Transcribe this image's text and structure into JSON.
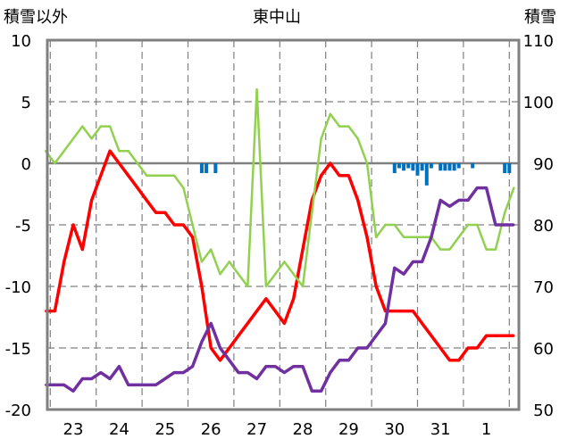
{
  "chart_data": {
    "type": "line",
    "title": "東中山",
    "left_axis_label": "積雪以外",
    "right_axis_label": "積雪",
    "left_ylim": [
      -20,
      10
    ],
    "left_ticks": [
      "10",
      "5",
      "0",
      "-5",
      "-10",
      "-15",
      "-20"
    ],
    "right_ylim": [
      50,
      110
    ],
    "right_ticks": [
      "110",
      "100",
      "90",
      "80",
      "70",
      "60",
      "50"
    ],
    "x_categories": [
      "23",
      "24",
      "25",
      "26",
      "27",
      "28",
      "29",
      "30",
      "31",
      "1"
    ],
    "grid": true,
    "colors": {
      "temperature": "#ff0000",
      "temp_alt": "#92d050",
      "snow_depth": "#7030a0",
      "precip": "#0070c0",
      "frame": "#808080",
      "grid": "#808080"
    },
    "series": [
      {
        "color_key": "temperature",
        "axis": "left",
        "x": [
          -0.6,
          -0.4,
          -0.2,
          0.0,
          0.2,
          0.4,
          0.6,
          0.8,
          1.0,
          1.2,
          1.4,
          1.6,
          1.8,
          2.0,
          2.2,
          2.4,
          2.6,
          2.8,
          3.0,
          3.2,
          3.4,
          3.6,
          3.8,
          4.0,
          4.2,
          4.4,
          4.6,
          4.8,
          5.0,
          5.2,
          5.4,
          5.6,
          5.8,
          6.0,
          6.2,
          6.4,
          6.6,
          6.8,
          7.0,
          7.2,
          7.4,
          7.6,
          7.8,
          8.0,
          8.2,
          8.4,
          8.6,
          8.8,
          9.0,
          9.2,
          9.4,
          9.6
        ],
        "values": [
          -12,
          -12,
          -8,
          -5,
          -7,
          -3,
          -1,
          1,
          0,
          -1,
          -2,
          -3,
          -4,
          -4,
          -5,
          -5,
          -6,
          -10,
          -15,
          -16,
          -15,
          -14,
          -13,
          -12,
          -11,
          -12,
          -13,
          -11,
          -7,
          -3,
          -1,
          0,
          -1,
          -1,
          -3,
          -6,
          -10,
          -12,
          -12,
          -12,
          -12,
          -13,
          -14,
          -15,
          -16,
          -16,
          -15,
          -15,
          -14,
          -14,
          -14,
          -14
        ]
      },
      {
        "color_key": "temp_alt",
        "axis": "left",
        "x": [
          -0.6,
          -0.4,
          -0.2,
          0.0,
          0.2,
          0.4,
          0.6,
          0.8,
          1.0,
          1.2,
          1.4,
          1.6,
          1.8,
          2.0,
          2.2,
          2.4,
          2.6,
          2.8,
          3.0,
          3.2,
          3.4,
          3.6,
          3.8,
          4.0,
          4.2,
          4.4,
          4.6,
          4.8,
          5.0,
          5.2,
          5.4,
          5.6,
          5.8,
          6.0,
          6.2,
          6.4,
          6.6,
          6.8,
          7.0,
          7.2,
          7.4,
          7.6,
          7.8,
          8.0,
          8.2,
          8.4,
          8.6,
          8.8,
          9.0,
          9.2,
          9.4,
          9.6
        ],
        "values": [
          1,
          0,
          1,
          2,
          3,
          2,
          3,
          3,
          1,
          1,
          0,
          -1,
          -1,
          -1,
          -1,
          -2,
          -5,
          -8,
          -7,
          -9,
          -8,
          -9,
          -10,
          6,
          -10,
          -9,
          -8,
          -9,
          -10,
          -4,
          2,
          4,
          3,
          3,
          2,
          0,
          -6,
          -5,
          -5,
          -6,
          -6,
          -6,
          -6,
          -7,
          -7,
          -6,
          -5,
          -5,
          -7,
          -7,
          -4,
          -2
        ]
      },
      {
        "color_key": "snow_depth",
        "axis": "right",
        "x": [
          -0.6,
          -0.4,
          -0.2,
          0.0,
          0.2,
          0.4,
          0.6,
          0.8,
          1.0,
          1.2,
          1.4,
          1.6,
          1.8,
          2.0,
          2.2,
          2.4,
          2.6,
          2.8,
          3.0,
          3.2,
          3.4,
          3.6,
          3.8,
          4.0,
          4.2,
          4.4,
          4.6,
          4.8,
          5.0,
          5.2,
          5.4,
          5.6,
          5.8,
          6.0,
          6.2,
          6.4,
          6.6,
          6.8,
          7.0,
          7.2,
          7.4,
          7.6,
          7.8,
          8.0,
          8.2,
          8.4,
          8.6,
          8.8,
          9.0,
          9.2,
          9.4,
          9.6
        ],
        "values": [
          54,
          54,
          54,
          53,
          55,
          55,
          56,
          55,
          57,
          54,
          54,
          54,
          54,
          55,
          56,
          56,
          57,
          61,
          64,
          60,
          58,
          56,
          56,
          55,
          57,
          57,
          56,
          57,
          57,
          53,
          53,
          56,
          58,
          58,
          60,
          60,
          62,
          64,
          73,
          72,
          74,
          74,
          78,
          84,
          83,
          84,
          84,
          86,
          86,
          80,
          80,
          80
        ]
      }
    ],
    "precip_bars": {
      "color_key": "precip",
      "axis": "left",
      "x": [
        2.8,
        2.9,
        3.1,
        7.0,
        7.1,
        7.2,
        7.3,
        7.4,
        7.5,
        7.6,
        7.7,
        7.8,
        8.0,
        8.1,
        8.2,
        8.3,
        8.4,
        8.7,
        9.4,
        9.5
      ],
      "values": [
        -0.8,
        -0.8,
        -0.8,
        -0.8,
        -0.4,
        -0.6,
        -0.4,
        -0.6,
        -1.0,
        -0.6,
        -1.8,
        -0.4,
        -0.6,
        -0.6,
        -0.6,
        -0.6,
        -0.4,
        -0.4,
        -0.8,
        -0.8
      ]
    }
  }
}
